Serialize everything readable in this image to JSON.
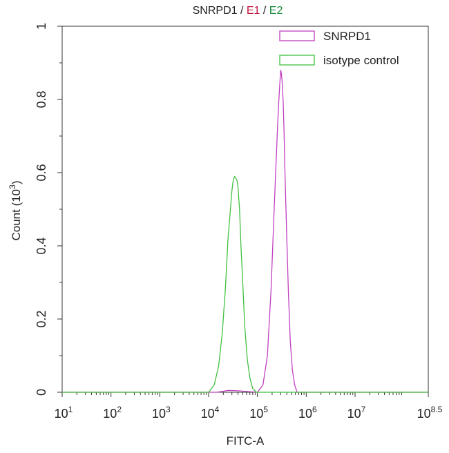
{
  "chart_data": {
    "type": "line",
    "title_parts": [
      {
        "text": "SNRPD1",
        "color": "#222222"
      },
      {
        "text": " / ",
        "color": "#222222"
      },
      {
        "text": "E1",
        "color": "#c0143c"
      },
      {
        "text": " / ",
        "color": "#222222"
      },
      {
        "text": "E2",
        "color": "#1a8a3c"
      }
    ],
    "xlabel": "FITC-A",
    "ylabel": "Count (10",
    "ylabel_sup": "3",
    "ylabel_end": ")",
    "x_scale": "log",
    "xlim": [
      10,
      316227766
    ],
    "ylim": [
      0,
      1
    ],
    "x_ticks": [
      {
        "base": "10",
        "exp": "1",
        "value": 10
      },
      {
        "base": "10",
        "exp": "2",
        "value": 100
      },
      {
        "base": "10",
        "exp": "3",
        "value": 1000
      },
      {
        "base": "10",
        "exp": "4",
        "value": 10000
      },
      {
        "base": "10",
        "exp": "5",
        "value": 100000
      },
      {
        "base": "10",
        "exp": "6",
        "value": 1000000
      },
      {
        "base": "10",
        "exp": "7",
        "value": 10000000
      },
      {
        "base": "10",
        "exp": "8.5",
        "value": 316227766
      }
    ],
    "y_ticks": [
      "0",
      "0.2",
      "0.4",
      "0.6",
      "0.8",
      "1"
    ],
    "legend_position": "top-right",
    "series": [
      {
        "name": "SNRPD1",
        "color": "#c040c0",
        "x": [
          10,
          15000,
          25000,
          40000,
          60000,
          100000,
          130000,
          160000,
          190000,
          220000,
          250000,
          270000,
          290000,
          300000,
          310000,
          320000,
          335000,
          350000,
          370000,
          400000,
          430000,
          470000,
          520000,
          580000,
          650000,
          316227766
        ],
        "y": [
          0,
          0,
          0.005,
          0.004,
          0.002,
          0,
          0.02,
          0.1,
          0.28,
          0.5,
          0.68,
          0.78,
          0.85,
          0.88,
          0.87,
          0.85,
          0.8,
          0.72,
          0.58,
          0.42,
          0.28,
          0.14,
          0.06,
          0.02,
          0,
          0
        ]
      },
      {
        "name": "isotype control",
        "color": "#40c040",
        "x": [
          10,
          10000,
          13000,
          16000,
          19000,
          22000,
          25000,
          28000,
          30000,
          32000,
          34000,
          36000,
          38000,
          40000,
          43000,
          46000,
          50000,
          55000,
          62000,
          70000,
          80000,
          95000,
          316227766
        ],
        "y": [
          0,
          0,
          0.02,
          0.07,
          0.16,
          0.28,
          0.42,
          0.5,
          0.55,
          0.58,
          0.59,
          0.585,
          0.58,
          0.56,
          0.5,
          0.4,
          0.3,
          0.18,
          0.09,
          0.04,
          0.01,
          0,
          0
        ]
      }
    ]
  }
}
